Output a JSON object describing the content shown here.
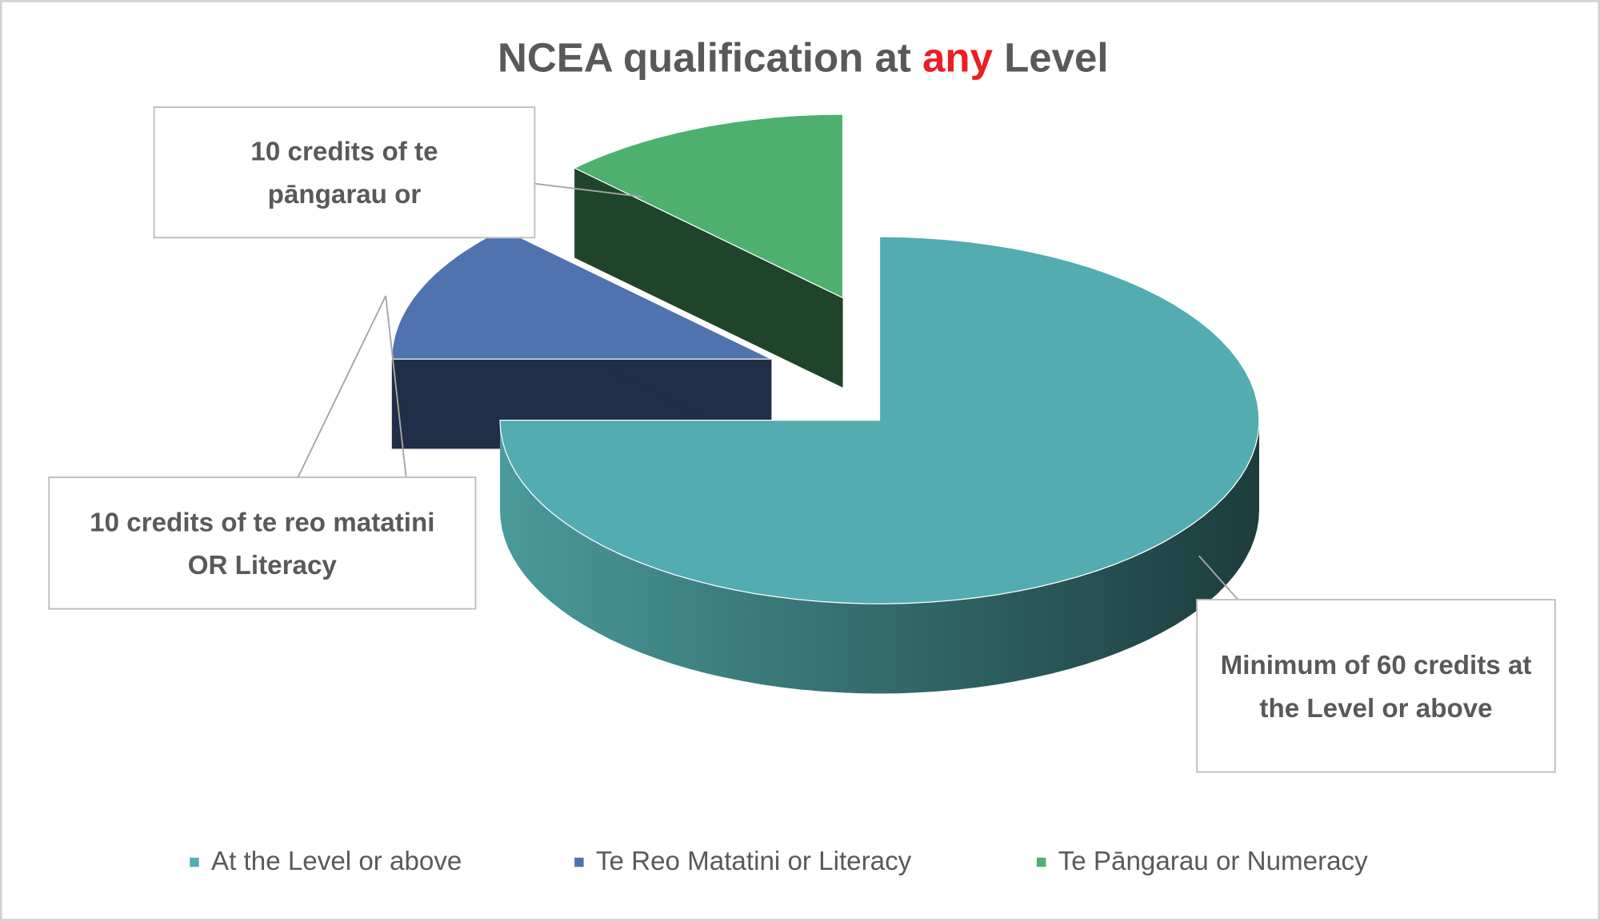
{
  "chart_data": {
    "type": "pie",
    "title": [
      {
        "text": "NCEA qualification at"
      },
      {
        "text": "any",
        "color": "#ee1c25"
      },
      {
        "text": "Level"
      }
    ],
    "categories": [
      "At the Level or above",
      "Te Reo Matatini or Literacy",
      "Te Pāngarau or Numeracy"
    ],
    "values": [
      60,
      10,
      10
    ],
    "value_labels": [
      "Minimum of 60 credits at the Level or above",
      "10 credits of te reo matatini OR Literacy",
      "10 credits of te pāngarau or"
    ],
    "colors": [
      "#52acb0",
      "#4f73ae",
      "#4db06e"
    ],
    "legend": "bottom",
    "style": "3d-exploded"
  }
}
